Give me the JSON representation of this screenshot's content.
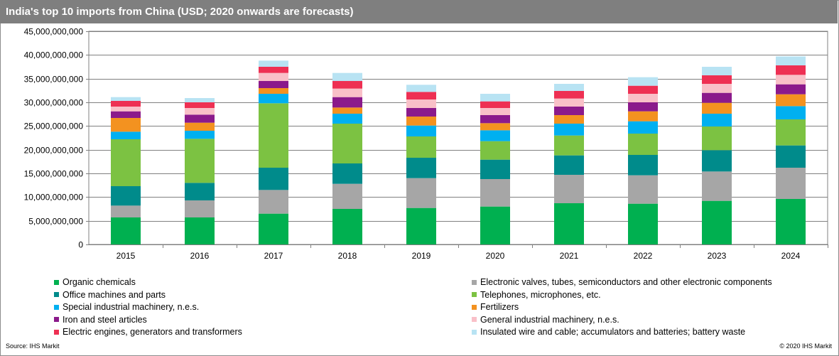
{
  "title": "India's top 10 imports from China (USD; 2020 onwards are forecasts)",
  "footer": {
    "source": "Source:  IHS Markit",
    "copyright": "© 2020  IHS Markit"
  },
  "chart_data": {
    "type": "bar",
    "stacked": true,
    "categories": [
      "2015",
      "2016",
      "2017",
      "2018",
      "2019",
      "2020",
      "2021",
      "2022",
      "2023",
      "2024"
    ],
    "ylim": [
      0,
      45000000000
    ],
    "yticks": [
      0,
      5000000000,
      10000000000,
      15000000000,
      20000000000,
      25000000000,
      30000000000,
      35000000000,
      40000000000,
      45000000000
    ],
    "ytick_labels": [
      "0",
      "5,000,000,000",
      "10,000,000,000",
      "15,000,000,000",
      "20,000,000,000",
      "25,000,000,000",
      "30,000,000,000",
      "35,000,000,000",
      "40,000,000,000",
      "45,000,000,000"
    ],
    "grid": true,
    "legend_position": "bottom",
    "series": [
      {
        "name": "Organic chemicals",
        "color": "#00b050",
        "values": [
          5700000000,
          5700000000,
          6500000000,
          7500000000,
          7700000000,
          8000000000,
          8700000000,
          8600000000,
          9200000000,
          9600000000
        ]
      },
      {
        "name": "Electronic valves, tubes, semiconductors and other electronic components",
        "color": "#a6a6a6",
        "values": [
          2500000000,
          3600000000,
          5000000000,
          5300000000,
          6300000000,
          5800000000,
          6000000000,
          6000000000,
          6200000000,
          6600000000
        ]
      },
      {
        "name": "Office machines and parts",
        "color": "#008b8b",
        "values": [
          4100000000,
          3700000000,
          4700000000,
          4300000000,
          4300000000,
          4100000000,
          4100000000,
          4300000000,
          4500000000,
          4700000000
        ]
      },
      {
        "name": "Telephones, microphones, etc.",
        "color": "#7cc242",
        "values": [
          9900000000,
          9300000000,
          13600000000,
          8400000000,
          4500000000,
          3900000000,
          4200000000,
          4500000000,
          5000000000,
          5500000000
        ]
      },
      {
        "name": "Special industrial machinery, n.e.s.",
        "color": "#00b0f0",
        "values": [
          1600000000,
          1700000000,
          2000000000,
          2100000000,
          2300000000,
          2300000000,
          2500000000,
          2600000000,
          2700000000,
          2800000000
        ]
      },
      {
        "name": "Fertilizers",
        "color": "#f39220",
        "values": [
          2900000000,
          1700000000,
          1200000000,
          1300000000,
          1900000000,
          1500000000,
          1800000000,
          2100000000,
          2300000000,
          2500000000
        ]
      },
      {
        "name": "Iron and steel articles",
        "color": "#8b1a8b",
        "values": [
          1400000000,
          1700000000,
          1500000000,
          2200000000,
          1800000000,
          1700000000,
          1800000000,
          1900000000,
          2100000000,
          2100000000
        ]
      },
      {
        "name": "General industrial machinery, n.e.s.",
        "color": "#f9c0c8",
        "values": [
          1000000000,
          1400000000,
          1700000000,
          1800000000,
          1800000000,
          1500000000,
          1700000000,
          1800000000,
          1900000000,
          2000000000
        ]
      },
      {
        "name": "Electric engines, generators and transformers",
        "color": "#ee3053",
        "values": [
          1200000000,
          1200000000,
          1300000000,
          1600000000,
          1600000000,
          1400000000,
          1600000000,
          1700000000,
          1800000000,
          2000000000
        ]
      },
      {
        "name": "Insulated wire and cable; accumulators and batteries; battery waste",
        "color": "#b8e3f3",
        "values": [
          800000000,
          900000000,
          1300000000,
          1700000000,
          1500000000,
          1600000000,
          1500000000,
          1800000000,
          1800000000,
          1900000000
        ]
      }
    ]
  }
}
